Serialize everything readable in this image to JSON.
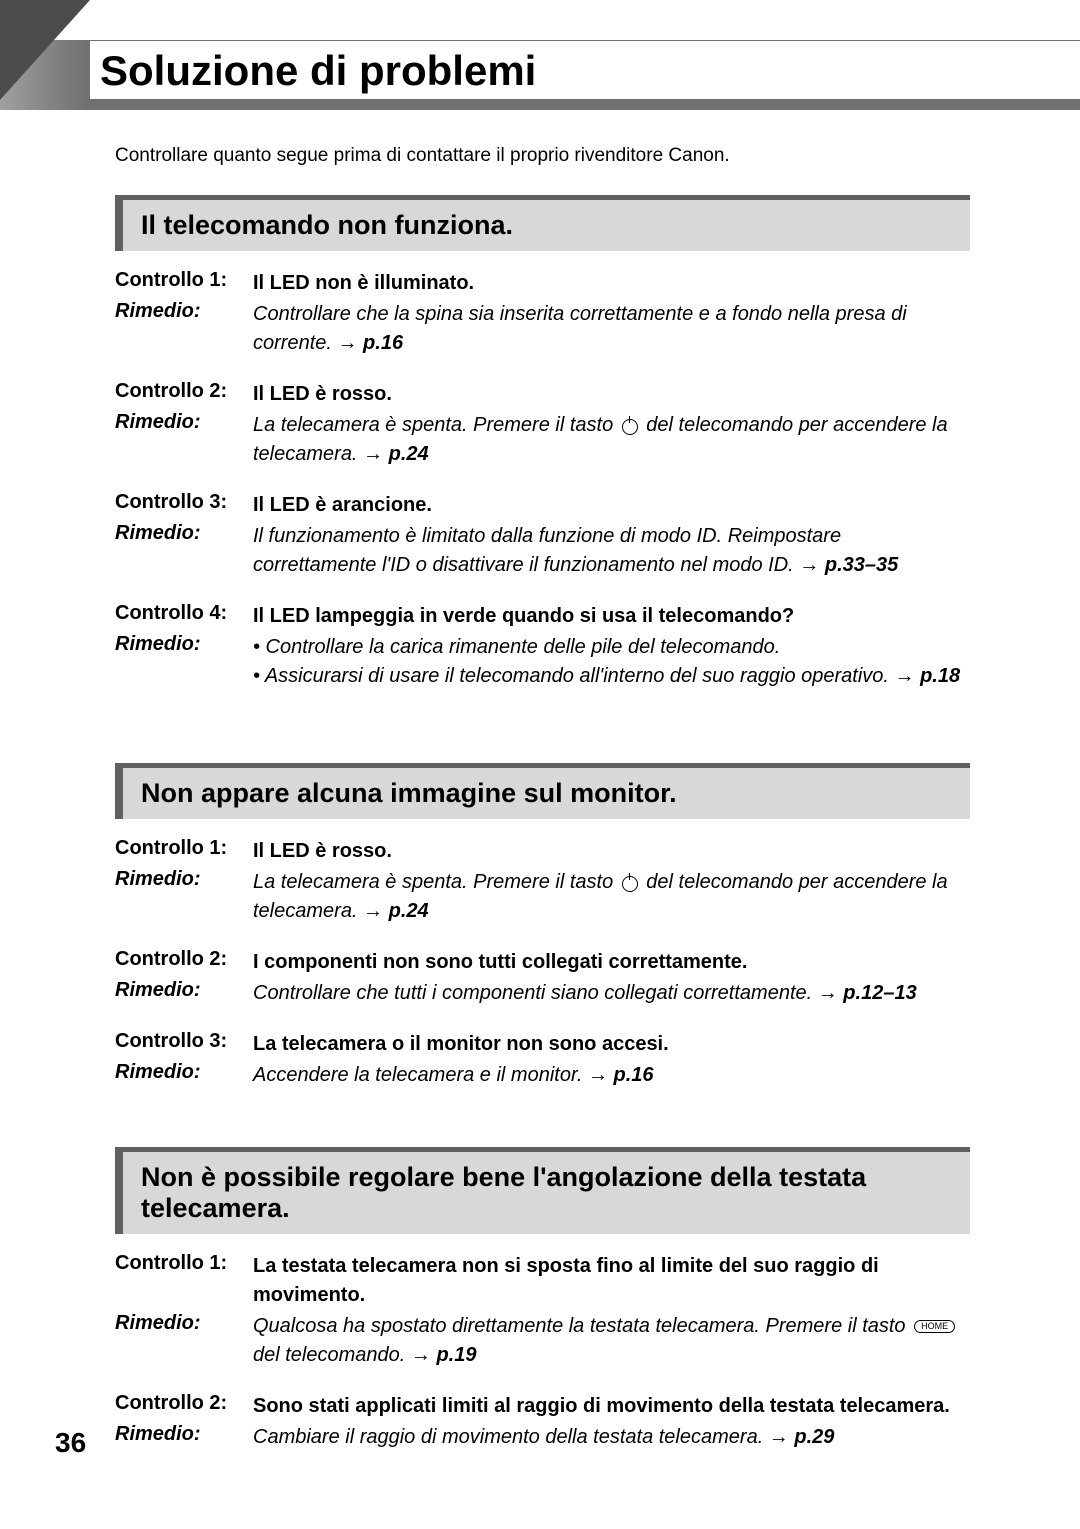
{
  "page_number": "36",
  "title": "Soluzione di problemi",
  "intro": "Controllare quanto segue prima di contattare il proprio rivenditore Canon.",
  "sections": [
    {
      "header": "Il telecomando non funziona.",
      "checks": [
        {
          "check_label": "Controllo 1:",
          "check_desc": "Il LED non è illuminato.",
          "remedy_label": "Rimedio:",
          "remedy_desc": "Controllare che la spina sia inserita correttamente e a fondo nella presa di corrente. → ",
          "page_ref": "p.16"
        },
        {
          "check_label": "Controllo 2:",
          "check_desc": "Il LED è rosso.",
          "remedy_label": "Rimedio:",
          "remedy_desc_pre": "La telecamera è spenta. Premere il tasto ",
          "remedy_desc_post": " del telecomando per accendere la telecamera. → ",
          "page_ref": "p.24",
          "has_power_icon": true
        },
        {
          "check_label": "Controllo 3:",
          "check_desc": "Il LED è arancione.",
          "remedy_label": "Rimedio:",
          "remedy_desc": "Il funzionamento è limitato dalla funzione di modo ID. Reimpostare correttamente l'ID o disattivare il funzionamento nel modo ID. → ",
          "page_ref": "p.33–35"
        },
        {
          "check_label": "Controllo 4:",
          "check_desc": "Il LED lampeggia in verde quando si usa il telecomando?",
          "remedy_label": "Rimedio:",
          "bullets": [
            "• Controllare la carica rimanente delle pile del telecomando.",
            "• Assicurarsi di usare il telecomando all'interno del suo raggio operativo. → "
          ],
          "page_ref": "p.18"
        }
      ]
    },
    {
      "header": "Non appare alcuna immagine sul monitor.",
      "checks": [
        {
          "check_label": "Controllo 1:",
          "check_desc": "Il LED è rosso.",
          "remedy_label": "Rimedio:",
          "remedy_desc_pre": "La telecamera è spenta. Premere il tasto ",
          "remedy_desc_post": " del telecomando per accendere la telecamera. → ",
          "page_ref": "p.24",
          "has_power_icon": true
        },
        {
          "check_label": "Controllo 2:",
          "check_desc": "I componenti non sono tutti collegati correttamente.",
          "remedy_label": "Rimedio:",
          "remedy_desc": "Controllare che tutti i componenti siano collegati correttamente. → ",
          "page_ref": "p.12–13"
        },
        {
          "check_label": "Controllo 3:",
          "check_desc": "La telecamera o il monitor non sono accesi.",
          "remedy_label": "Rimedio:",
          "remedy_desc": "Accendere la telecamera e il monitor. → ",
          "page_ref": "p.16"
        }
      ]
    },
    {
      "header": "Non è possibile regolare bene l'angolazione della testata telecamera.",
      "checks": [
        {
          "check_label": "Controllo 1:",
          "check_desc": "La testata telecamera non si sposta fino al limite del suo raggio di movimento.",
          "remedy_label": "Rimedio:",
          "remedy_desc_pre": "Qualcosa ha spostato direttamente la testata telecamera. Premere il tasto ",
          "remedy_desc_post": " del telecomando. → ",
          "page_ref": "p.19",
          "has_home_icon": true,
          "home_label": "HOME"
        },
        {
          "check_label": "Controllo 2:",
          "check_desc": "Sono stati applicati limiti al raggio di movimento della testata telecamera.",
          "remedy_label": "Rimedio:",
          "remedy_desc": "Cambiare il raggio di movimento della testata telecamera. → ",
          "page_ref": "p.29"
        }
      ]
    }
  ]
}
